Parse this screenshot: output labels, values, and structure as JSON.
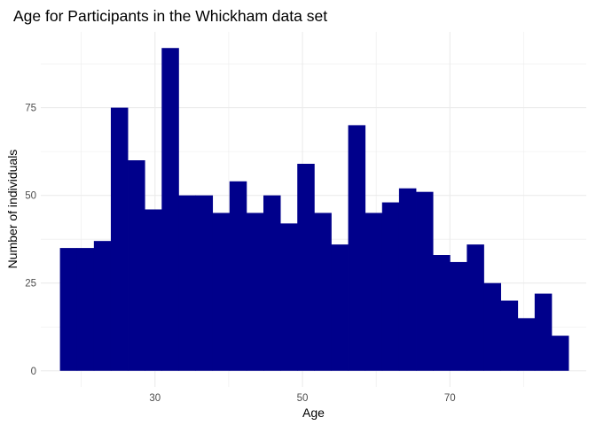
{
  "chart_data": {
    "type": "bar",
    "title": "Age for Participants in the Whickham data set",
    "xlabel": "Age",
    "ylabel": "Number of individuals",
    "bin_width": 2.3,
    "bins": [
      {
        "x_start": 17.1,
        "x_end": 19.4,
        "count": 35
      },
      {
        "x_start": 19.4,
        "x_end": 21.7,
        "count": 35
      },
      {
        "x_start": 21.7,
        "x_end": 24.0,
        "count": 37
      },
      {
        "x_start": 24.0,
        "x_end": 26.3,
        "count": 75
      },
      {
        "x_start": 26.3,
        "x_end": 28.6,
        "count": 60
      },
      {
        "x_start": 28.6,
        "x_end": 30.9,
        "count": 46
      },
      {
        "x_start": 30.9,
        "x_end": 33.2,
        "count": 92
      },
      {
        "x_start": 33.2,
        "x_end": 35.5,
        "count": 50
      },
      {
        "x_start": 35.5,
        "x_end": 37.8,
        "count": 50
      },
      {
        "x_start": 37.8,
        "x_end": 40.1,
        "count": 45
      },
      {
        "x_start": 40.1,
        "x_end": 42.4,
        "count": 54
      },
      {
        "x_start": 42.4,
        "x_end": 44.7,
        "count": 45
      },
      {
        "x_start": 44.7,
        "x_end": 47.0,
        "count": 50
      },
      {
        "x_start": 47.0,
        "x_end": 49.3,
        "count": 42
      },
      {
        "x_start": 49.3,
        "x_end": 51.6,
        "count": 59
      },
      {
        "x_start": 51.6,
        "x_end": 53.9,
        "count": 45
      },
      {
        "x_start": 53.9,
        "x_end": 56.2,
        "count": 36
      },
      {
        "x_start": 56.2,
        "x_end": 58.5,
        "count": 70
      },
      {
        "x_start": 58.5,
        "x_end": 60.8,
        "count": 45
      },
      {
        "x_start": 60.8,
        "x_end": 63.1,
        "count": 48
      },
      {
        "x_start": 63.1,
        "x_end": 65.4,
        "count": 52
      },
      {
        "x_start": 65.4,
        "x_end": 67.7,
        "count": 51
      },
      {
        "x_start": 67.7,
        "x_end": 70.0,
        "count": 33
      },
      {
        "x_start": 70.0,
        "x_end": 72.3,
        "count": 31
      },
      {
        "x_start": 72.3,
        "x_end": 74.6,
        "count": 36
      },
      {
        "x_start": 74.6,
        "x_end": 76.9,
        "count": 25
      },
      {
        "x_start": 76.9,
        "x_end": 79.2,
        "count": 20
      },
      {
        "x_start": 79.2,
        "x_end": 81.5,
        "count": 15
      },
      {
        "x_start": 81.5,
        "x_end": 83.8,
        "count": 22
      },
      {
        "x_start": 83.8,
        "x_end": 86.1,
        "count": 10
      }
    ],
    "x_ticks": [
      30,
      50,
      70
    ],
    "x_tick_labels": [
      "30",
      "50",
      "70"
    ],
    "y_ticks": [
      0,
      25,
      50,
      75
    ],
    "y_tick_labels": [
      "0",
      "25",
      "50",
      "75"
    ],
    "xlim": [
      14.5,
      88.5
    ],
    "ylim": [
      -4.6,
      96.6
    ],
    "grid": true,
    "legend": "none",
    "bar_color": "#00008B",
    "grid_color": "#EBEBEB"
  }
}
